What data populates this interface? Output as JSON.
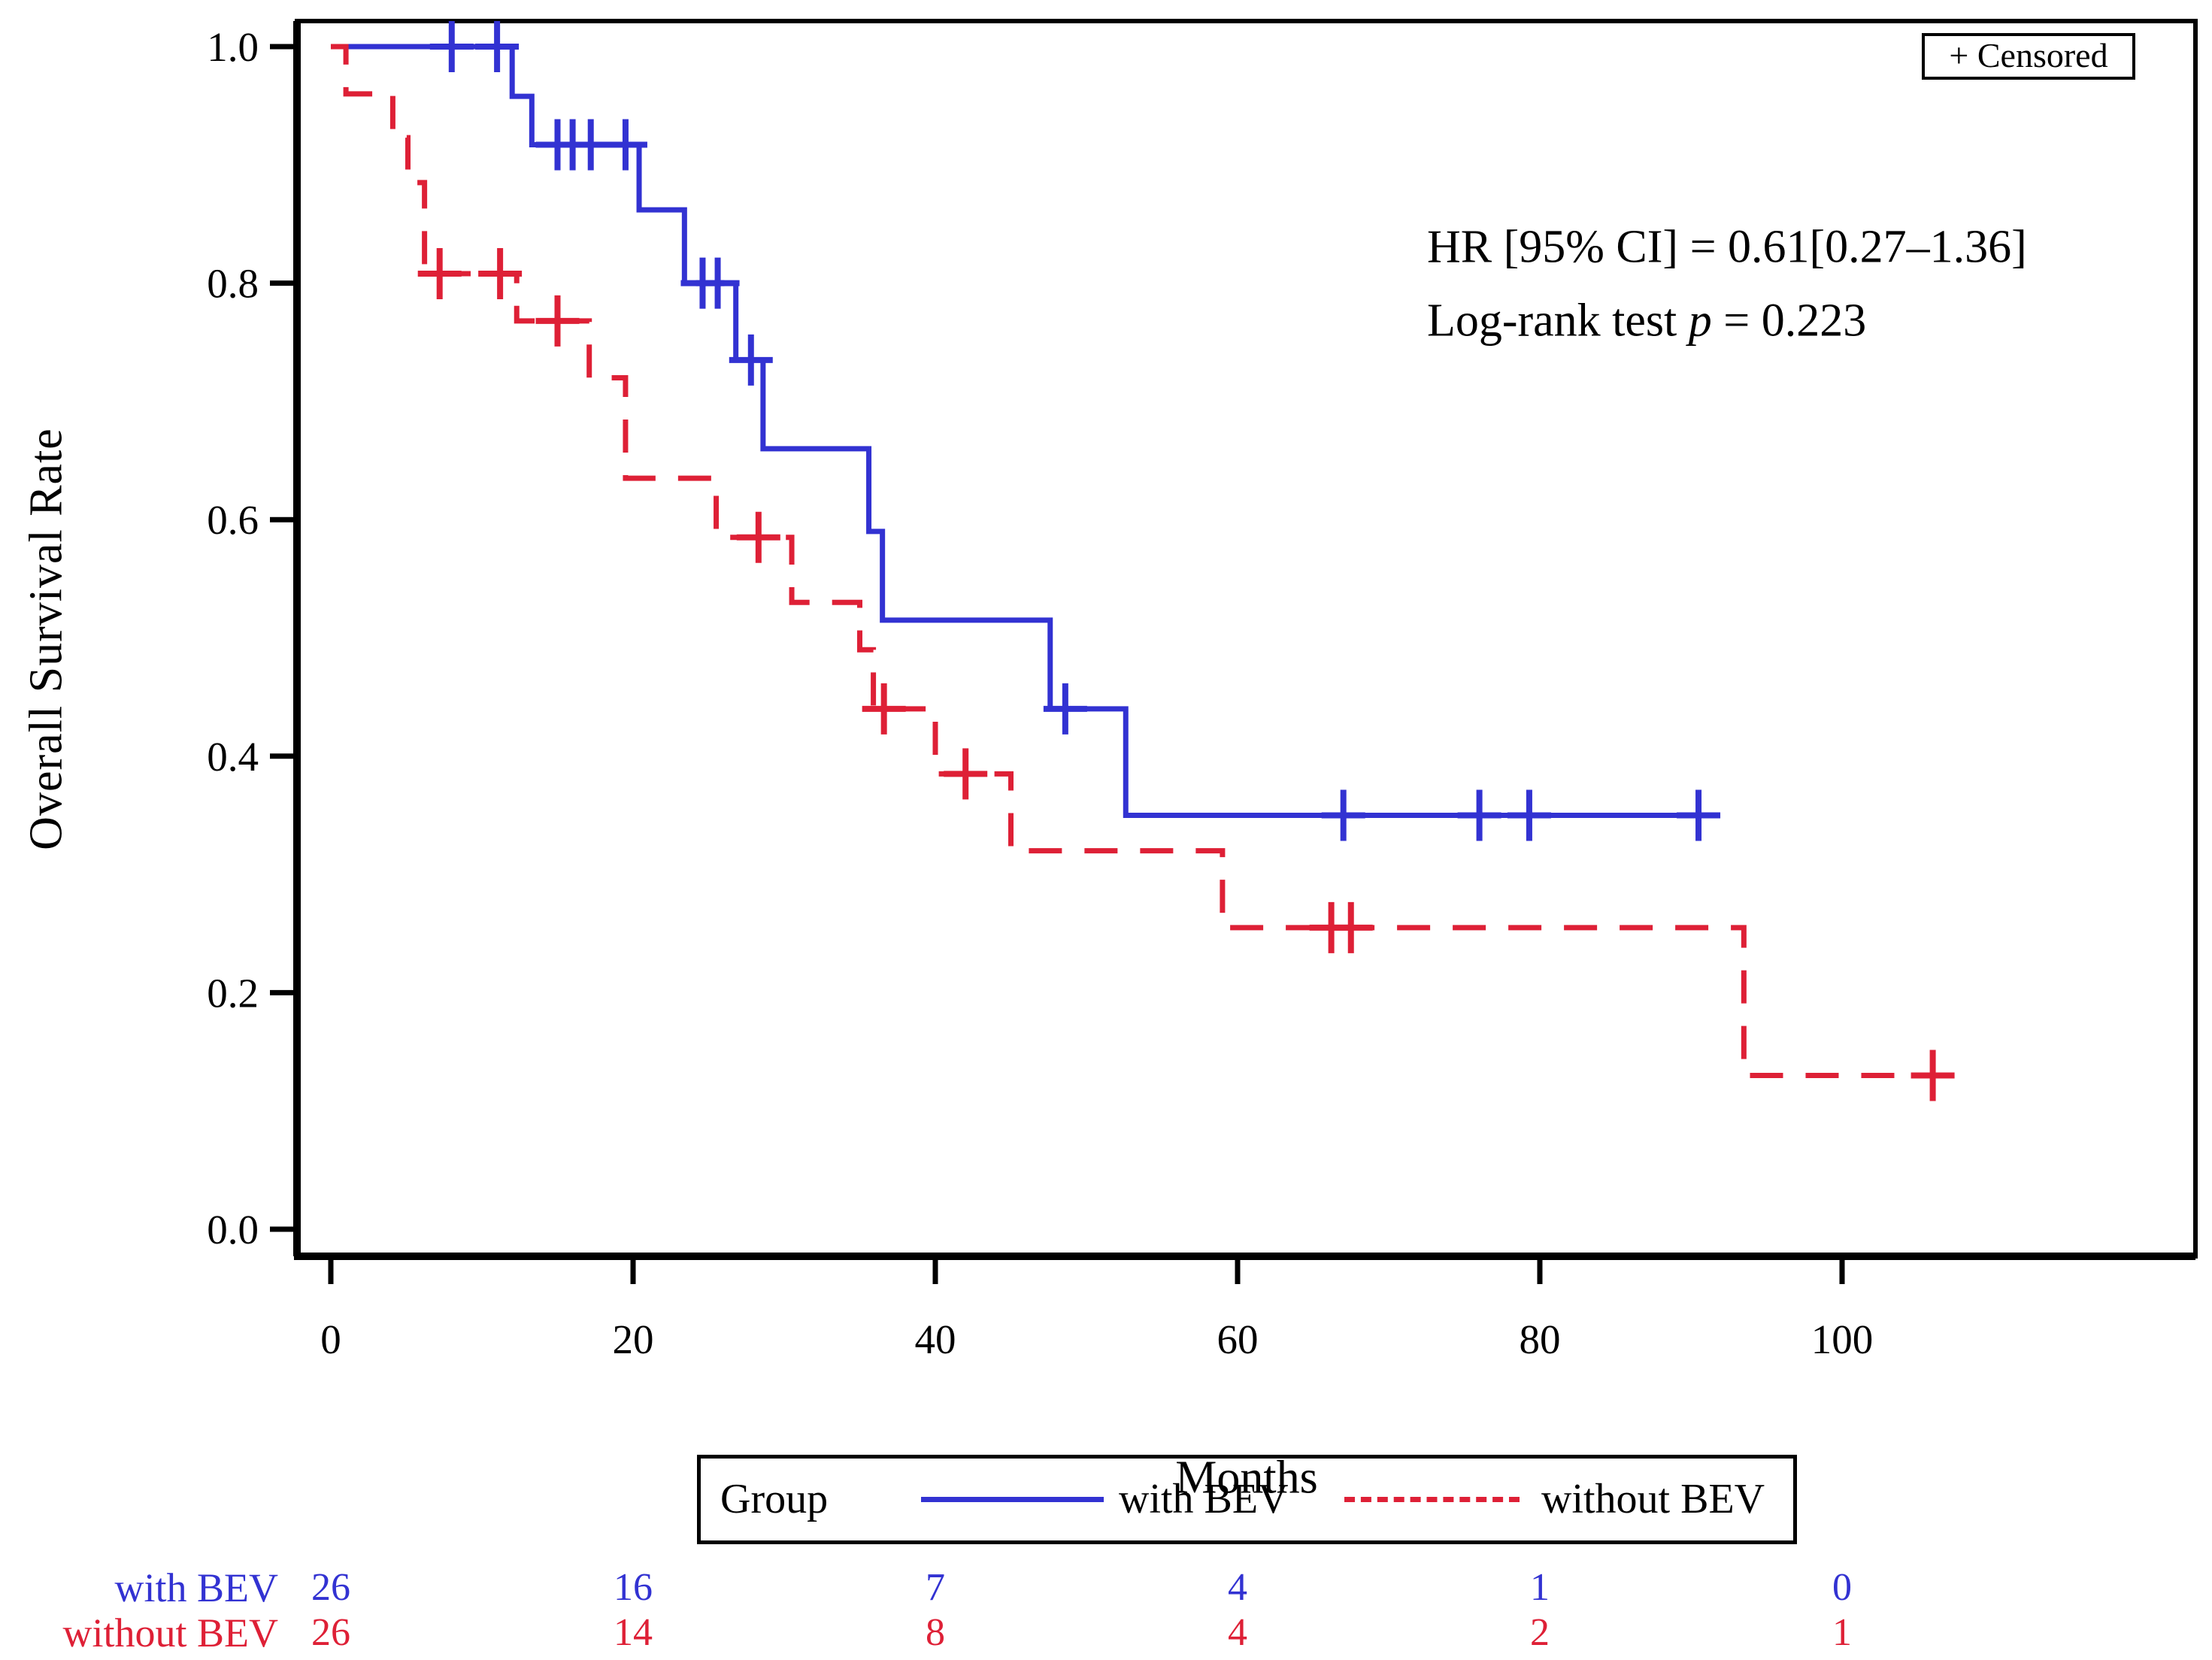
{
  "chart_data": {
    "type": "line",
    "subtype": "kaplan_meier_step_plot",
    "title": "",
    "xlabel": "Months",
    "ylabel": "Overall Survival Rate",
    "xlim": [
      0,
      123
    ],
    "ylim": [
      0.0,
      1.0
    ],
    "grid": false,
    "legend_position": "bottom",
    "xticks": [
      {
        "m": 0,
        "label": "0"
      },
      {
        "m": 20,
        "label": "20"
      },
      {
        "m": 40,
        "label": "40"
      },
      {
        "m": 60,
        "label": "60"
      },
      {
        "m": 80,
        "label": "80"
      },
      {
        "m": 100,
        "label": "100"
      }
    ],
    "yticks": [
      {
        "v": 1.0,
        "label": "1.0"
      },
      {
        "v": 0.8,
        "label": "0.8"
      },
      {
        "v": 0.6,
        "label": "0.6"
      },
      {
        "v": 0.4,
        "label": "0.4"
      },
      {
        "v": 0.2,
        "label": "0.2"
      },
      {
        "v": 0.0,
        "label": "0.0"
      }
    ],
    "censored_label": "+ Censored",
    "annotations": {
      "hr_text": "HR [95% CI] = 0.61[0.27–1.36]",
      "logrank_prefix": "Log-rank test ",
      "logrank_p_symbol": "p",
      "logrank_suffix": " = 0.223"
    },
    "legend": {
      "title": "Group",
      "entries": [
        {
          "label": "with BEV",
          "color": "#3232d2",
          "style": "solid"
        },
        {
          "label": "without BEV",
          "color": "#de2036",
          "style": "dashed"
        }
      ]
    },
    "series": [
      {
        "name": "with BEV",
        "color": "#3232d2",
        "line_style": "solid",
        "steps": [
          [
            0,
            1.0
          ],
          [
            12,
            0.958
          ],
          [
            13.3,
            0.917
          ],
          [
            20.4,
            0.862
          ],
          [
            23.4,
            0.8
          ],
          [
            26.8,
            0.735
          ],
          [
            28.6,
            0.66
          ],
          [
            35.6,
            0.59
          ],
          [
            36.5,
            0.515
          ],
          [
            47.6,
            0.44
          ],
          [
            52.6,
            0.35
          ]
        ],
        "end_month": 91.5,
        "censor_marks": [
          [
            8,
            1.0
          ],
          [
            11,
            1.0
          ],
          [
            15,
            0.917
          ],
          [
            16,
            0.917
          ],
          [
            17.2,
            0.917
          ],
          [
            19.5,
            0.917
          ],
          [
            24.6,
            0.8
          ],
          [
            25.6,
            0.8
          ],
          [
            27.8,
            0.735
          ],
          [
            48.6,
            0.44
          ],
          [
            67,
            0.35
          ],
          [
            76,
            0.35
          ],
          [
            79.3,
            0.35
          ],
          [
            90.5,
            0.35
          ]
        ]
      },
      {
        "name": "without BEV",
        "color": "#de2036",
        "line_style": "dashed",
        "steps": [
          [
            0,
            1.0
          ],
          [
            1,
            0.96
          ],
          [
            4.1,
            0.923
          ],
          [
            5.1,
            0.885
          ],
          [
            6.2,
            0.808
          ],
          [
            12.3,
            0.768
          ],
          [
            17.1,
            0.72
          ],
          [
            19.5,
            0.635
          ],
          [
            25.5,
            0.585
          ],
          [
            30.5,
            0.53
          ],
          [
            35,
            0.49
          ],
          [
            35.9,
            0.44
          ],
          [
            40,
            0.385
          ],
          [
            45,
            0.32
          ],
          [
            59,
            0.255
          ],
          [
            93.5,
            0.13
          ]
        ],
        "end_month": 106,
        "censor_marks": [
          [
            7.2,
            0.808
          ],
          [
            11.2,
            0.808
          ],
          [
            15,
            0.768
          ],
          [
            28.3,
            0.585
          ],
          [
            36.6,
            0.44
          ],
          [
            42,
            0.385
          ],
          [
            66.2,
            0.255
          ],
          [
            67.5,
            0.255
          ],
          [
            106,
            0.13
          ]
        ]
      }
    ],
    "risk_table": {
      "x_months": [
        0,
        20,
        40,
        60,
        80,
        100
      ],
      "rows": [
        {
          "label": "with BEV",
          "color": "#3232d2",
          "values": [
            "26",
            "16",
            "7",
            "4",
            "1",
            "0"
          ]
        },
        {
          "label": "without BEV",
          "color": "#de2036",
          "values": [
            "26",
            "14",
            "8",
            "4",
            "2",
            "1"
          ]
        }
      ]
    },
    "axis_color": "#000000"
  }
}
